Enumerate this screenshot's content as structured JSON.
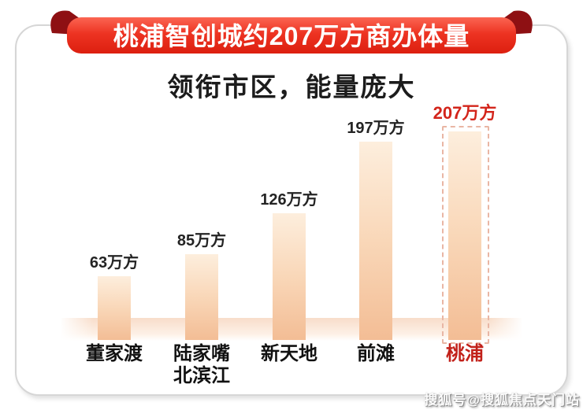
{
  "banner": {
    "title": "桃浦智创城约207万方商办体量"
  },
  "subtitle": "领衔市区，能量庞大",
  "chart_data": {
    "type": "bar",
    "title": "桃浦智创城约207万方商办体量",
    "subtitle": "领衔市区，能量庞大",
    "unit": "万方",
    "ylim": [
      0,
      207
    ],
    "grid": false,
    "legend": "none",
    "categories": [
      "董家渡",
      "陆家嘴北滨江",
      "新天地",
      "前滩",
      "桃浦"
    ],
    "values": [
      63,
      85,
      126,
      197,
      207
    ],
    "bars": [
      {
        "category_label": "董家渡",
        "value": 63,
        "value_label": "63万方",
        "highlight": false
      },
      {
        "category_label": "陆家嘴\n北滨江",
        "value": 85,
        "value_label": "85万方",
        "highlight": false
      },
      {
        "category_label": "新天地",
        "value": 126,
        "value_label": "126万方",
        "highlight": false
      },
      {
        "category_label": "前滩",
        "value": 197,
        "value_label": "197万方",
        "highlight": false
      },
      {
        "category_label": "桃浦",
        "value": 207,
        "value_label": "207万方",
        "highlight": true
      }
    ]
  },
  "colors": {
    "ribbon_red_top": "#fb6552",
    "ribbon_red_bottom": "#dc1f0f",
    "ribbon_fold_dark": "#8e1013",
    "bar_top": "#fdeedd",
    "bar_bottom": "#f3bd95",
    "highlight_value_red": "#d3251b",
    "highlight_category_red": "#c2211a",
    "dashed_frame": "#e9b6a4",
    "card_border": "#d6d6d6"
  },
  "watermark": "搜狐号@搜狐焦点天门站"
}
